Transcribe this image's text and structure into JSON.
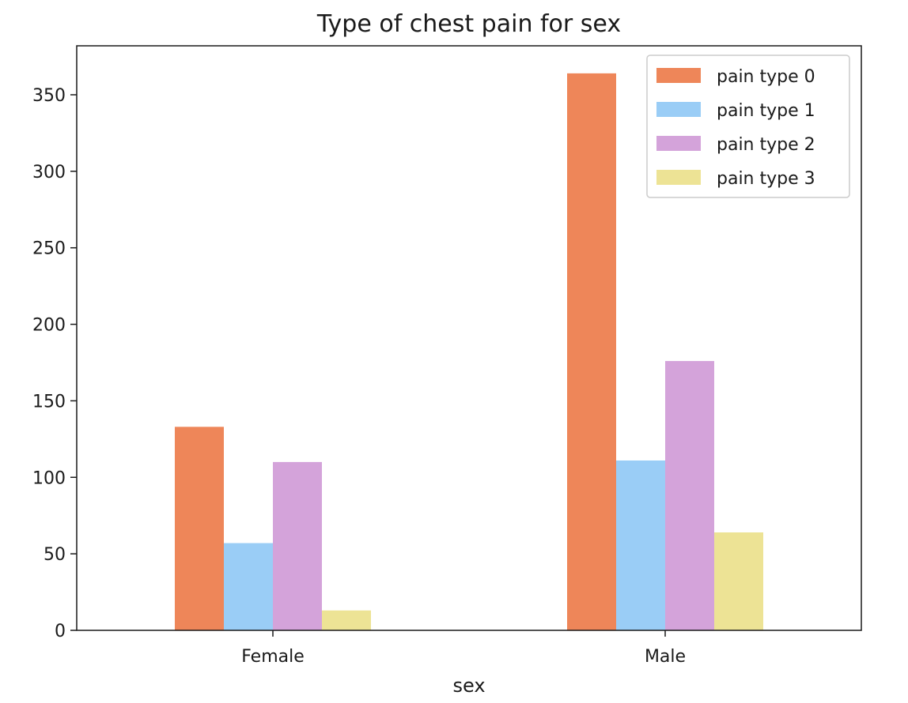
{
  "chart_data": {
    "type": "bar",
    "title": "Type of chest pain for sex",
    "xlabel": "sex",
    "ylabel": "",
    "categories": [
      "Female",
      "Male"
    ],
    "series": [
      {
        "name": "pain type 0",
        "values": [
          133,
          364
        ],
        "color": "#ee8659"
      },
      {
        "name": "pain type 1",
        "values": [
          57,
          111
        ],
        "color": "#9acdf6"
      },
      {
        "name": "pain type 2",
        "values": [
          110,
          176
        ],
        "color": "#d4a3da"
      },
      {
        "name": "pain type 3",
        "values": [
          13,
          64
        ],
        "color": "#ede395"
      }
    ],
    "ylim": [
      0,
      382
    ],
    "yticks": [
      0,
      50,
      100,
      150,
      200,
      250,
      300,
      350
    ],
    "grid": false,
    "legend_position": "top-right"
  }
}
